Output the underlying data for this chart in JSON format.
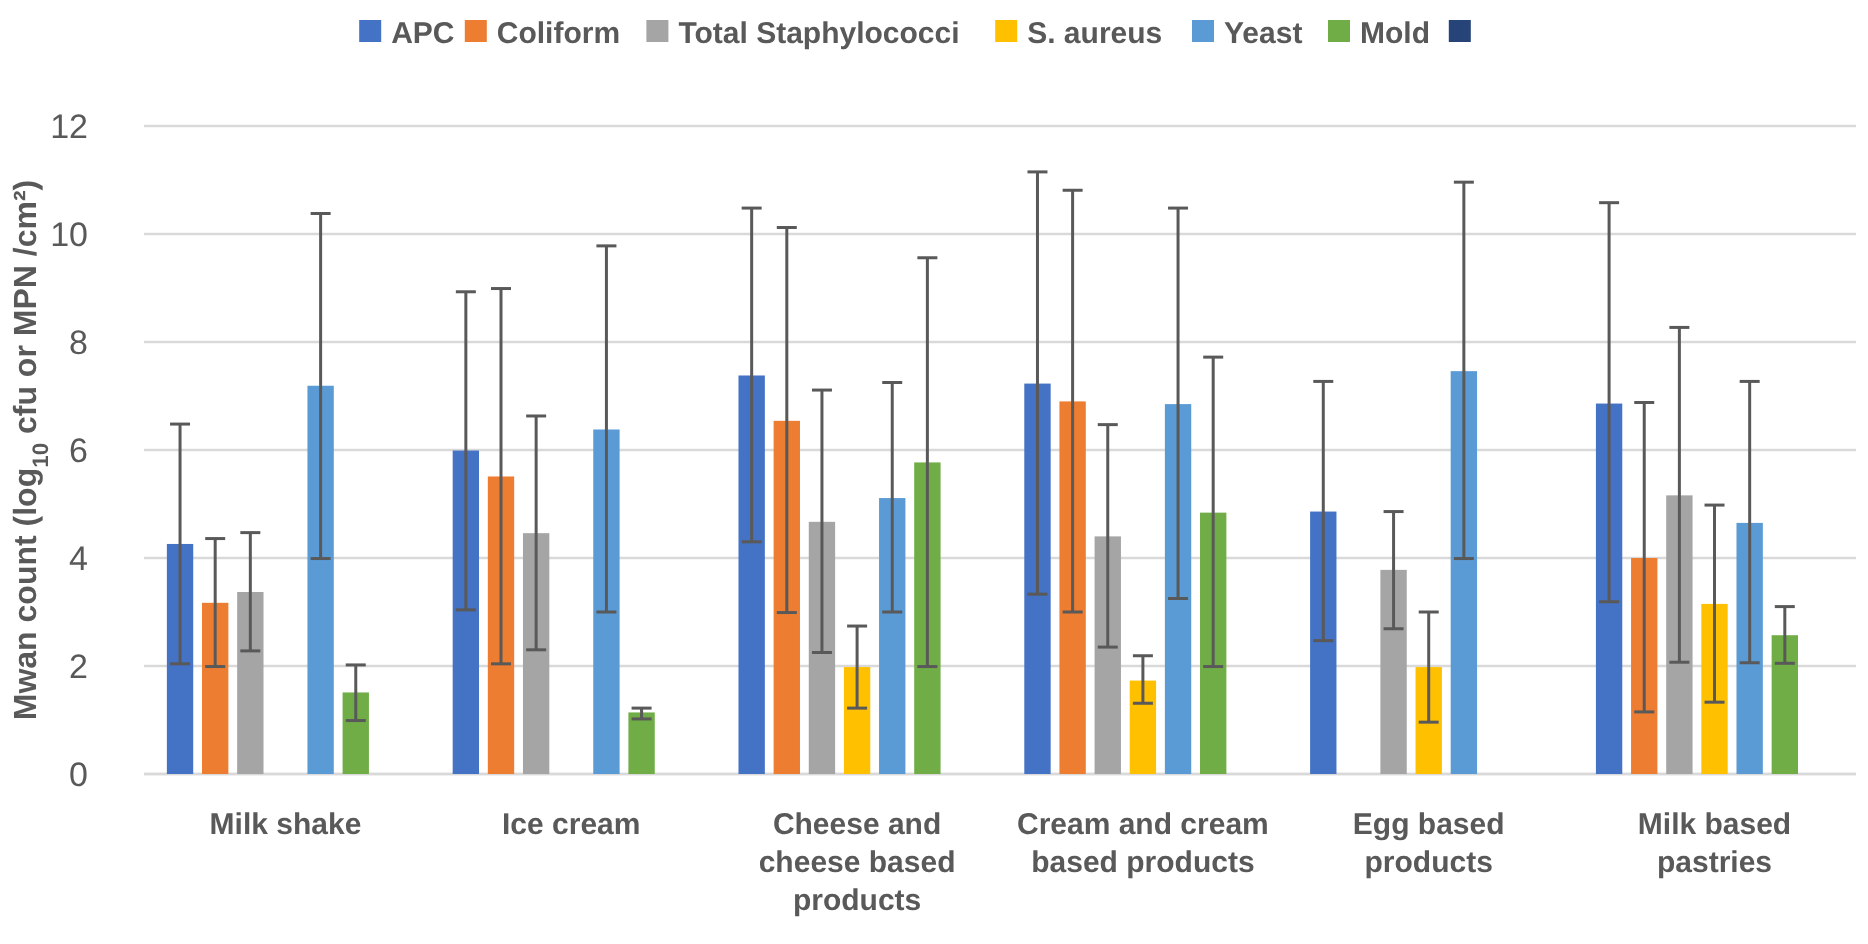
{
  "chart_data": {
    "type": "bar",
    "ylabel": "Mwan count (log$_{10}$ cfu or MPN /cm²)",
    "categories": [
      "Milk shake",
      "Ice cream",
      "Cheese and cheese based products",
      "Cream and cream based products",
      "Egg based products",
      "Milk based pastries"
    ],
    "ylim": [
      0,
      12
    ],
    "yticks": [
      0,
      2,
      4,
      6,
      8,
      10,
      12
    ],
    "grid": "y",
    "legend": "top",
    "series": [
      {
        "name": "APC",
        "color": "#4472c4",
        "values": [
          4.26,
          5.99,
          7.38,
          7.23,
          4.86,
          6.86
        ],
        "errors": [
          [
            2.04,
            6.48
          ],
          [
            3.04,
            8.93
          ],
          [
            4.3,
            10.48
          ],
          [
            3.33,
            11.15
          ],
          [
            2.47,
            7.27
          ],
          [
            3.19,
            10.58
          ]
        ]
      },
      {
        "name": "Coliform",
        "color": "#ed7d31",
        "values": [
          3.17,
          5.51,
          6.54,
          6.9,
          0,
          4.0
        ],
        "errors": [
          [
            1.99,
            4.36
          ],
          [
            2.04,
            8.99
          ],
          [
            2.99,
            10.12
          ],
          [
            3.0,
            10.81
          ],
          null,
          [
            1.15,
            6.88
          ]
        ]
      },
      {
        "name": "Total Staphylococci",
        "color": "#a5a5a5",
        "values": [
          3.37,
          4.46,
          4.67,
          4.4,
          3.78,
          5.16
        ],
        "errors": [
          [
            2.28,
            4.47
          ],
          [
            2.3,
            6.63
          ],
          [
            2.25,
            7.11
          ],
          [
            2.35,
            6.47
          ],
          [
            2.69,
            4.86
          ],
          [
            2.07,
            8.27
          ]
        ]
      },
      {
        "name": "S. aureus",
        "color": "#ffc000",
        "values": [
          0,
          0,
          1.98,
          1.73,
          1.98,
          3.15
        ],
        "errors": [
          null,
          null,
          [
            1.22,
            2.74
          ],
          [
            1.31,
            2.19
          ],
          [
            0.96,
            3.0
          ],
          [
            1.33,
            4.98
          ]
        ]
      },
      {
        "name": "Yeast",
        "color": "#5b9bd5",
        "values": [
          7.19,
          6.38,
          5.11,
          6.85,
          7.46,
          4.65
        ],
        "errors": [
          [
            3.99,
            10.38
          ],
          [
            3.0,
            9.78
          ],
          [
            3.0,
            7.25
          ],
          [
            3.25,
            10.48
          ],
          [
            3.99,
            10.96
          ],
          [
            2.06,
            7.27
          ]
        ]
      },
      {
        "name": "Mold",
        "color": "#70ad47",
        "values": [
          1.51,
          1.14,
          5.77,
          4.84,
          0,
          2.57
        ],
        "errors": [
          [
            0.99,
            2.02
          ],
          [
            1.02,
            1.22
          ],
          [
            1.99,
            9.56
          ],
          [
            1.99,
            7.72
          ],
          null,
          [
            2.05,
            3.1
          ]
        ]
      },
      {
        "color": "#264478",
        "values": [
          null,
          null,
          null,
          null,
          null,
          null
        ]
      }
    ]
  }
}
